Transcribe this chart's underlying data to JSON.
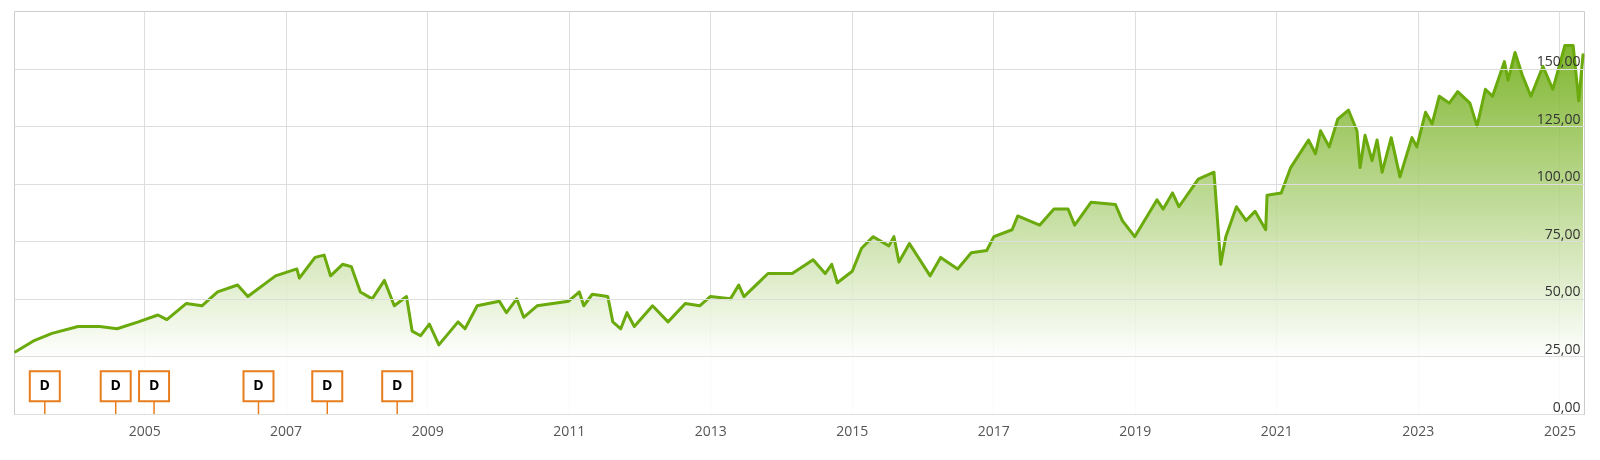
{
  "chart_data": {
    "type": "area",
    "x": [
      "2003-03-09",
      "2003-06-16",
      "2003-09-13",
      "2004-01-26",
      "2004-05-17",
      "2004-08-14",
      "2004-12-02",
      "2005-03-13",
      "2005-04-28",
      "2005-08-07",
      "2005-10-26",
      "2006-01-15",
      "2006-04-28",
      "2006-06-20",
      "2006-11-10",
      "2007-02-28",
      "2007-03-13",
      "2007-06-02",
      "2007-07-19",
      "2007-08-21",
      "2007-10-22",
      "2007-12-06",
      "2008-01-22",
      "2008-03-23",
      "2008-05-25",
      "2008-07-15",
      "2008-09-16",
      "2008-10-15",
      "2008-11-28",
      "2009-01-12",
      "2009-03-02",
      "2009-06-09",
      "2009-07-15",
      "2009-09-16",
      "2010-01-08",
      "2010-02-14",
      "2010-04-08",
      "2010-05-14",
      "2010-07-22",
      "2011-01-01",
      "2011-02-25",
      "2011-03-20",
      "2011-05-03",
      "2011-07-22",
      "2011-08-17",
      "2011-09-27",
      "2011-10-29",
      "2011-12-06",
      "2012-03-09",
      "2012-05-28",
      "2012-08-25",
      "2012-11-07",
      "2013-01-01",
      "2013-04-15",
      "2013-05-28",
      "2013-06-24",
      "2013-10-26",
      "2014-02-28",
      "2014-06-16",
      "2014-08-17",
      "2014-09-20",
      "2014-10-19",
      "2015-01-04",
      "2015-02-21",
      "2015-04-22",
      "2015-07-12",
      "2015-08-07",
      "2015-09-02",
      "2015-10-26",
      "2016-02-10",
      "2016-04-04",
      "2016-07-01",
      "2016-09-09",
      "2016-11-28",
      "2017-01-04",
      "2017-04-08",
      "2017-05-07",
      "2017-08-28",
      "2017-11-10",
      "2018-01-22",
      "2018-02-25",
      "2018-05-21",
      "2018-09-23",
      "2018-10-29",
      "2019-01-01",
      "2019-04-26",
      "2019-05-28",
      "2019-07-15",
      "2019-08-17",
      "2019-11-25",
      "2020-02-14",
      "2020-03-20",
      "2020-04-15",
      "2020-06-09",
      "2020-07-29",
      "2020-09-13",
      "2020-11-07",
      "2020-11-14",
      "2021-01-26",
      "2021-03-16",
      "2021-06-16",
      "2021-07-22",
      "2021-08-17",
      "2021-10-01",
      "2021-11-14",
      "2022-01-08",
      "2022-02-21",
      "2022-03-09",
      "2022-04-04",
      "2022-05-10",
      "2022-06-05",
      "2022-07-01",
      "2022-08-17",
      "2022-10-01",
      "2022-12-02",
      "2022-12-27",
      "2023-02-10",
      "2023-03-16",
      "2023-04-22",
      "2023-06-13",
      "2023-07-26",
      "2023-09-27",
      "2023-11-03",
      "2023-12-16",
      "2024-01-22",
      "2024-03-23",
      "2024-04-11",
      "2024-05-17",
      "2024-06-24",
      "2024-08-07",
      "2024-10-08",
      "2024-11-28",
      "2025-01-29",
      "2025-03-13",
      "2025-04-11",
      "2025-05-03"
    ],
    "series": [
      {
        "type": "scatter",
        "marker": "square",
        "color": "#e87d1e",
        "x": [
          "2003-08-07",
          "2004-08-07",
          "2005-02-21",
          "2006-08-14",
          "2007-08-04",
          "2008-07-30"
        ],
        "values": [
          12,
          12,
          12,
          12,
          12,
          12
        ],
        "value_labels": [
          "D",
          "D",
          "D",
          "D",
          "D",
          "D"
        ]
      },
      {
        "color": "#6aaa0c",
        "values": [
          27,
          32,
          35,
          38,
          38,
          37,
          40,
          43,
          41,
          48,
          47,
          53,
          56,
          51,
          60,
          63,
          59,
          68,
          69,
          60,
          65,
          64,
          53,
          50,
          58,
          47,
          51,
          36,
          34,
          39,
          30,
          40,
          37,
          47,
          49,
          44,
          50,
          42,
          47,
          49,
          53,
          47,
          52,
          51,
          40,
          37,
          44,
          38,
          47,
          40,
          48,
          47,
          51,
          50,
          56,
          51,
          61,
          61,
          67,
          61,
          65,
          57,
          62,
          72,
          77,
          73,
          77,
          66,
          74,
          60,
          68,
          63,
          70,
          71,
          77,
          80,
          86,
          82,
          89,
          89,
          82,
          92,
          91,
          84,
          77,
          93,
          89,
          96,
          90,
          102,
          105,
          65,
          77,
          90,
          84,
          88,
          80,
          95,
          96,
          107,
          119,
          113,
          123,
          116,
          128,
          132,
          123,
          107,
          121,
          110,
          119,
          105,
          120,
          103,
          120,
          116,
          131,
          126,
          138,
          135,
          140,
          135,
          125,
          141,
          138,
          153,
          145,
          157,
          147,
          138,
          151,
          141,
          160,
          160,
          136,
          156
        ]
      }
    ],
    "xlim": [
      "2003-03-01",
      "2025-05-08"
    ],
    "xticks": [
      "2005",
      "2007",
      "2009",
      "2011",
      "2013",
      "2015",
      "2017",
      "2019",
      "2021",
      "2023",
      "2025"
    ],
    "ylim": [
      0,
      175
    ],
    "yticks": [
      {
        "value": 0,
        "label": "0,00"
      },
      {
        "value": 25,
        "label": "25,00"
      },
      {
        "value": 50,
        "label": "50,00"
      },
      {
        "value": 75,
        "label": "75,00"
      },
      {
        "value": 100,
        "label": "100,00"
      },
      {
        "value": 125,
        "label": "125,00"
      },
      {
        "value": 150,
        "label": "150,00"
      }
    ],
    "grid": true
  }
}
